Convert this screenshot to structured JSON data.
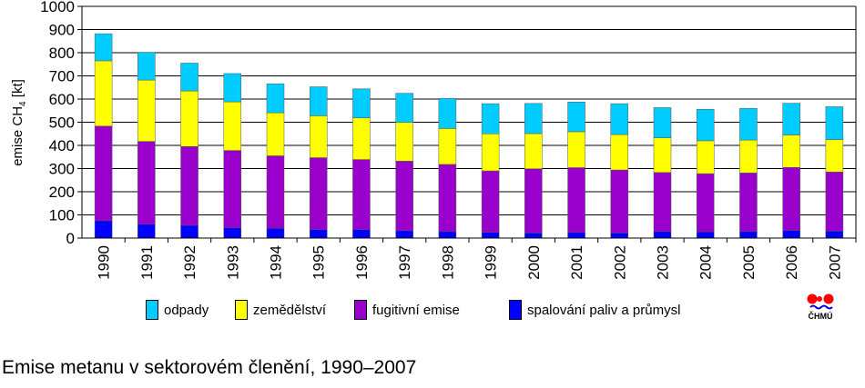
{
  "caption": "Emise metanu v sektorovém členění, 1990–2007",
  "logo_text": "ČHMÚ",
  "chart_data": {
    "type": "bar",
    "stacked": true,
    "ylabel_main": "emise CH",
    "ylabel_sub": "4",
    "ylabel_unit": " [kt]",
    "ylim": [
      0,
      1000
    ],
    "yticks": [
      0,
      100,
      200,
      300,
      400,
      500,
      600,
      700,
      800,
      900,
      1000
    ],
    "grid": true,
    "legend_position": "bottom",
    "categories": [
      "1990",
      "1991",
      "1992",
      "1993",
      "1994",
      "1995",
      "1996",
      "1997",
      "1998",
      "1999",
      "2000",
      "2001",
      "2002",
      "2003",
      "2004",
      "2005",
      "2006",
      "2007"
    ],
    "series": [
      {
        "name": "spalování paliv a průmysl",
        "color": "#0000ff",
        "values": [
          75,
          60,
          55,
          45,
          42,
          37,
          37,
          32,
          28,
          25,
          22,
          24,
          22,
          28,
          27,
          28,
          33,
          30
        ]
      },
      {
        "name": "fugitivní emise",
        "color": "#9900cc",
        "values": [
          408,
          357,
          340,
          333,
          313,
          310,
          302,
          300,
          290,
          265,
          277,
          280,
          272,
          255,
          251,
          253,
          272,
          255
        ]
      },
      {
        "name": "zemědělství",
        "color": "#ffff00",
        "values": [
          282,
          265,
          240,
          210,
          186,
          181,
          180,
          167,
          155,
          160,
          152,
          155,
          153,
          150,
          142,
          142,
          140,
          140
        ]
      },
      {
        "name": "odpady",
        "color": "#00ccff",
        "values": [
          117,
          120,
          120,
          122,
          125,
          125,
          125,
          126,
          130,
          130,
          130,
          128,
          133,
          130,
          136,
          137,
          137,
          142
        ]
      }
    ],
    "legend_order": [
      "odpady",
      "zemědělství",
      "fugitivní emise",
      "spalování paliv a průmysl"
    ]
  }
}
